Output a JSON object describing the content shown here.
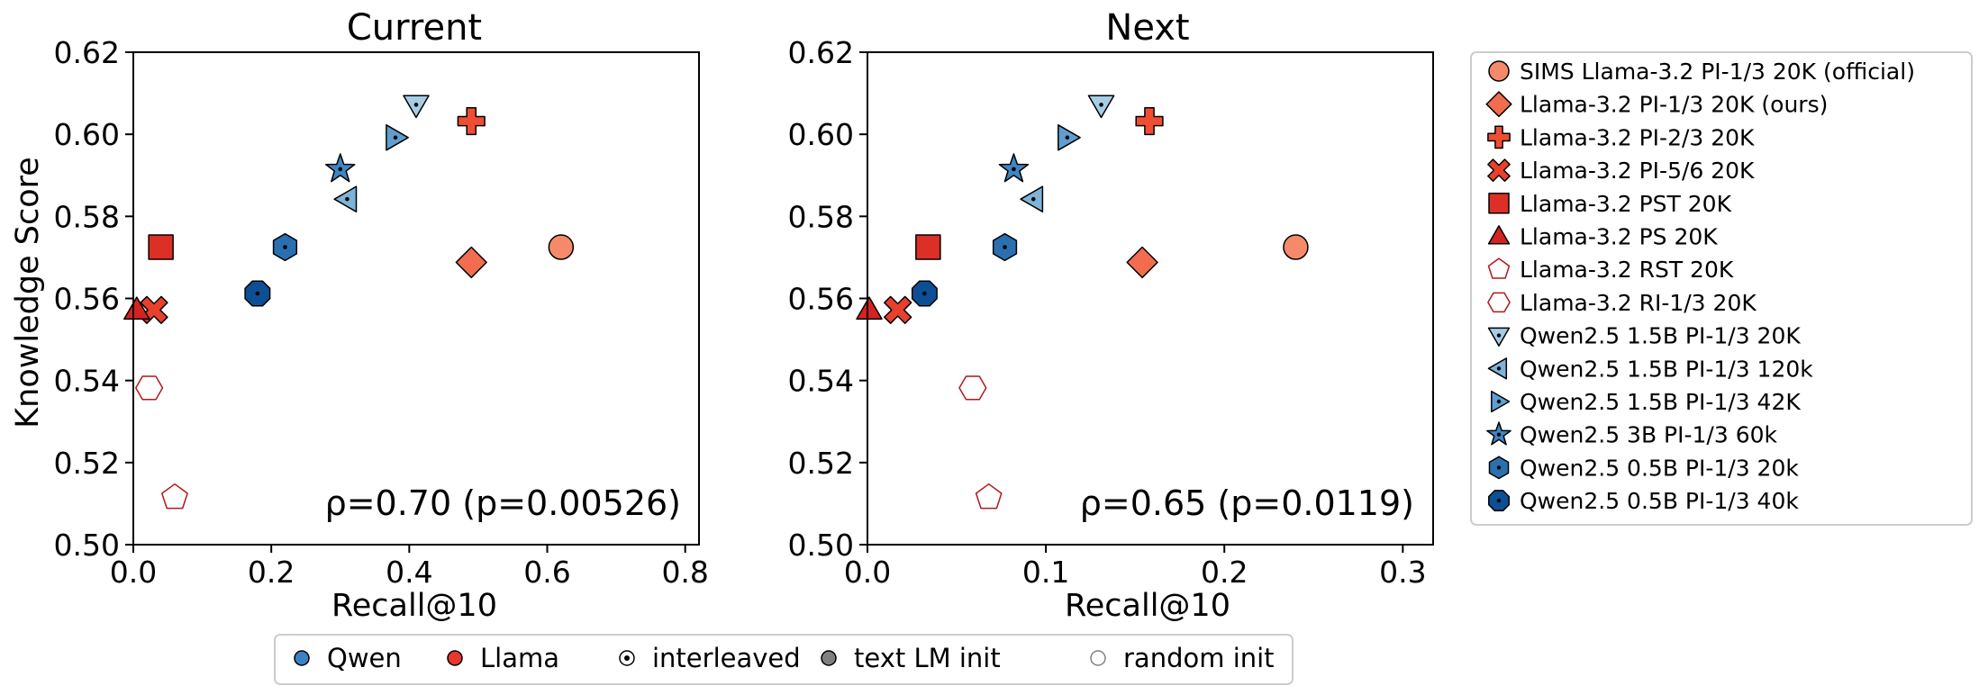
{
  "chart_data": [
    {
      "type": "scatter",
      "title": "Current",
      "xlabel": "Recall@10",
      "ylabel": "Knowledge Score",
      "xlim": [
        0.0,
        0.82
      ],
      "ylim": [
        0.5,
        0.62
      ],
      "xticks": [
        "0.0",
        "0.2",
        "0.4",
        "0.6",
        "0.8"
      ],
      "yticks": [
        "0.50",
        "0.52",
        "0.54",
        "0.56",
        "0.58",
        "0.60",
        "0.62"
      ],
      "annotation": "ρ=0.70 (p=0.00526)",
      "points": [
        {
          "series": "SIMS Llama-3.2 PI-1/3 20K (official)",
          "x": 0.62,
          "y": 0.5725
        },
        {
          "series": "Llama-3.2 PI-1/3 20K (ours)",
          "x": 0.49,
          "y": 0.5688
        },
        {
          "series": "Llama-3.2 PI-2/3 20K",
          "x": 0.49,
          "y": 0.6032
        },
        {
          "series": "Llama-3.2 PI-5/6 20K",
          "x": 0.03,
          "y": 0.5572
        },
        {
          "series": "Llama-3.2 PST 20K",
          "x": 0.04,
          "y": 0.5725
        },
        {
          "series": "Llama-3.2 PS 20K",
          "x": 0.005,
          "y": 0.5572
        },
        {
          "series": "Llama-3.2 RST 20K",
          "x": 0.06,
          "y": 0.5115
        },
        {
          "series": "Llama-3.2 RI-1/3 20K",
          "x": 0.023,
          "y": 0.5382
        },
        {
          "series": "Qwen2.5 1.5B PI-1/3 20K",
          "x": 0.41,
          "y": 0.6072
        },
        {
          "series": "Qwen2.5 1.5B PI-1/3 120k",
          "x": 0.31,
          "y": 0.5842
        },
        {
          "series": "Qwen2.5 1.5B PI-1/3 42K",
          "x": 0.38,
          "y": 0.5992
        },
        {
          "series": "Qwen2.5 3B PI-1/3 60k",
          "x": 0.3,
          "y": 0.5915
        },
        {
          "series": "Qwen2.5 0.5B PI-1/3 20k",
          "x": 0.22,
          "y": 0.5725
        },
        {
          "series": "Qwen2.5 0.5B PI-1/3 40k",
          "x": 0.18,
          "y": 0.5612
        }
      ]
    },
    {
      "type": "scatter",
      "title": "Next",
      "xlabel": "Recall@10",
      "ylabel": "",
      "xlim": [
        0.0,
        0.317
      ],
      "ylim": [
        0.5,
        0.62
      ],
      "xticks": [
        "0.0",
        "0.1",
        "0.2",
        "0.3"
      ],
      "yticks": [
        "0.50",
        "0.52",
        "0.54",
        "0.56",
        "0.58",
        "0.60",
        "0.62"
      ],
      "annotation": "ρ=0.65 (p=0.0119)",
      "points": [
        {
          "series": "SIMS Llama-3.2 PI-1/3 20K (official)",
          "x": 0.24,
          "y": 0.5725
        },
        {
          "series": "Llama-3.2 PI-1/3 20K (ours)",
          "x": 0.154,
          "y": 0.5688
        },
        {
          "series": "Llama-3.2 PI-2/3 20K",
          "x": 0.158,
          "y": 0.6032
        },
        {
          "series": "Llama-3.2 PI-5/6 20K",
          "x": 0.017,
          "y": 0.5572
        },
        {
          "series": "Llama-3.2 PST 20K",
          "x": 0.034,
          "y": 0.5725
        },
        {
          "series": "Llama-3.2 PS 20K",
          "x": 0.001,
          "y": 0.5572
        },
        {
          "series": "Llama-3.2 RST 20K",
          "x": 0.068,
          "y": 0.5115
        },
        {
          "series": "Llama-3.2 RI-1/3 20K",
          "x": 0.059,
          "y": 0.5382
        },
        {
          "series": "Qwen2.5 1.5B PI-1/3 20K",
          "x": 0.131,
          "y": 0.6072
        },
        {
          "series": "Qwen2.5 1.5B PI-1/3 120k",
          "x": 0.093,
          "y": 0.5842
        },
        {
          "series": "Qwen2.5 1.5B PI-1/3 42K",
          "x": 0.112,
          "y": 0.5992
        },
        {
          "series": "Qwen2.5 3B PI-1/3 60k",
          "x": 0.082,
          "y": 0.5915
        },
        {
          "series": "Qwen2.5 0.5B PI-1/3 20k",
          "x": 0.077,
          "y": 0.5725
        },
        {
          "series": "Qwen2.5 0.5B PI-1/3 40k",
          "x": 0.032,
          "y": 0.5612
        }
      ]
    }
  ],
  "legend_series": [
    {
      "name": "SIMS Llama-3.2 PI-1/3 20K (official)",
      "marker": "circle",
      "color": "#f58a6b",
      "edge": "#000000",
      "dot": false
    },
    {
      "name": "Llama-3.2 PI-1/3 20K (ours)",
      "marker": "diamond",
      "color": "#f26d4f",
      "edge": "#000000",
      "dot": false
    },
    {
      "name": "Llama-3.2 PI-2/3 20K",
      "marker": "plus",
      "color": "#f04e33",
      "edge": "#000000",
      "dot": false
    },
    {
      "name": "Llama-3.2 PI-5/6 20K",
      "marker": "x",
      "color": "#e8402c",
      "edge": "#000000",
      "dot": false
    },
    {
      "name": "Llama-3.2 PST 20K",
      "marker": "square",
      "color": "#dc2f26",
      "edge": "#000000",
      "dot": false
    },
    {
      "name": "Llama-3.2 PS 20K",
      "marker": "triangle-up",
      "color": "#d42320",
      "edge": "#000000",
      "dot": false
    },
    {
      "name": "Llama-3.2 RST 20K",
      "marker": "pentagon",
      "color": "#ffffff",
      "edge": "#b2171b",
      "dot": false
    },
    {
      "name": "Llama-3.2 RI-1/3 20K",
      "marker": "hexagon-flat",
      "color": "#ffffff",
      "edge": "#b2171b",
      "dot": false
    },
    {
      "name": "Qwen2.5 1.5B PI-1/3 20K",
      "marker": "triangle-down",
      "color": "#a6cde6",
      "edge": "#000000",
      "dot": true
    },
    {
      "name": "Qwen2.5 1.5B PI-1/3 120k",
      "marker": "triangle-left",
      "color": "#7fb4d9",
      "edge": "#000000",
      "dot": true
    },
    {
      "name": "Qwen2.5 1.5B PI-1/3 42K",
      "marker": "triangle-right",
      "color": "#5e9fd0",
      "edge": "#000000",
      "dot": true
    },
    {
      "name": "Qwen2.5 3B PI-1/3 60k",
      "marker": "star",
      "color": "#3f86c1",
      "edge": "#000000",
      "dot": true
    },
    {
      "name": "Qwen2.5 0.5B PI-1/3 20k",
      "marker": "hexagon",
      "color": "#2a70b0",
      "edge": "#000000",
      "dot": true
    },
    {
      "name": "Qwen2.5 0.5B PI-1/3 40k",
      "marker": "octagon",
      "color": "#0d4f95",
      "edge": "#000000",
      "dot": true
    }
  ],
  "bottom_legend": [
    {
      "label": "Qwen",
      "style": "qwen"
    },
    {
      "label": "Llama",
      "style": "llama"
    },
    {
      "label": "interleaved",
      "style": "interleaved"
    },
    {
      "label": "text LM init",
      "style": "text"
    },
    {
      "label": "random init",
      "style": "random"
    }
  ],
  "bottom_legend_colors": {
    "qwen": "#3b82c4",
    "llama": "#e8382b",
    "text": "#808080",
    "random_edge": "#808080"
  }
}
